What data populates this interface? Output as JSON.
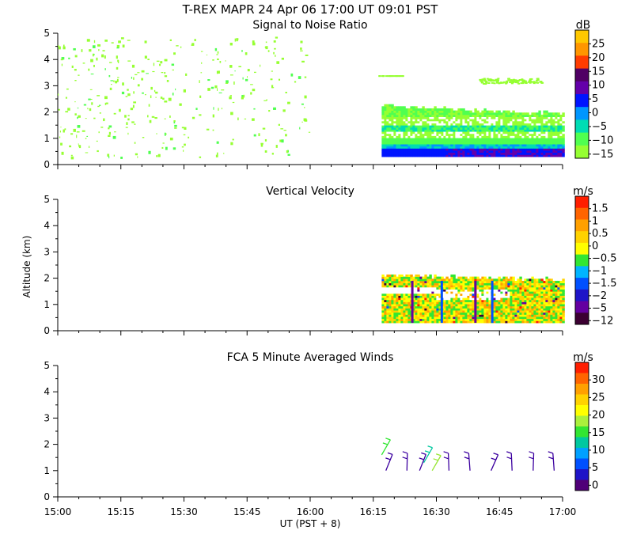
{
  "header": {
    "title": "T-REX  MAPR 24 Apr 06  17:00 UT  09:01  PST"
  },
  "axes": {
    "xlabel": "UT  (PST + 8)",
    "ylabel": "Altitude (km)",
    "x_ticks": [
      "15:00",
      "15:15",
      "15:30",
      "15:45",
      "16:00",
      "16:15",
      "16:30",
      "16:45",
      "17:00"
    ],
    "y_ticks": [
      "0",
      "1",
      "2",
      "3",
      "4",
      "5"
    ]
  },
  "chart_data": [
    {
      "type": "heatmap",
      "title": "Signal to Noise Ratio",
      "xlim": [
        "15:00",
        "17:00"
      ],
      "ylim": [
        0,
        5
      ],
      "colorbar": {
        "unit": "dB",
        "ticks": [
          "25",
          "20",
          "15",
          "10",
          "5",
          "0",
          "−5",
          "−10",
          "−15"
        ],
        "colors": [
          "#ffc800",
          "#ff9600",
          "#ff3c00",
          "#500064",
          "#6400aa",
          "#0014ff",
          "#0096ff",
          "#00dcb4",
          "#50ff50",
          "#96ff32"
        ]
      },
      "summary": {
        "sparse_region": {
          "x": [
            "15:00",
            "16:00"
          ],
          "y": [
            0.3,
            4.9
          ],
          "value_db": -15
        },
        "dense_region": {
          "x": [
            "16:17",
            "17:00"
          ],
          "y": [
            0.3,
            2.2
          ]
        },
        "upper_band": {
          "x": [
            "16:40",
            "16:55"
          ],
          "y": [
            3.1,
            3.3
          ],
          "value_db": -15
        }
      }
    },
    {
      "type": "heatmap",
      "title": "Vertical Velocity",
      "xlim": [
        "15:00",
        "17:00"
      ],
      "ylim": [
        0,
        5
      ],
      "colorbar": {
        "unit": "m/s",
        "ticks": [
          "1.5",
          "1",
          "0.5",
          "0",
          "−0.5",
          "−1",
          "−1.5",
          "−2",
          "−5",
          "−12"
        ],
        "colors": [
          "#ff1e00",
          "#ff6400",
          "#ffa000",
          "#ffd200",
          "#ffff00",
          "#32e632",
          "#00b4ff",
          "#0050ff",
          "#1e14c8",
          "#6400a0",
          "#3c0032"
        ]
      },
      "summary": {
        "dense_region": {
          "x": [
            "16:17",
            "17:00"
          ],
          "y": [
            0.3,
            2.2
          ]
        }
      }
    },
    {
      "type": "scatter",
      "title": "FCA 5 Minute Averaged Winds",
      "xlim": [
        "15:00",
        "17:00"
      ],
      "ylim": [
        0,
        5
      ],
      "colorbar": {
        "unit": "m/s",
        "ticks": [
          "30",
          "25",
          "20",
          "15",
          "10",
          "5",
          "0"
        ],
        "colors": [
          "#ff1e00",
          "#ff6400",
          "#ffa000",
          "#ffd200",
          "#ffff00",
          "#aaf03c",
          "#32e632",
          "#00c8a0",
          "#00a0ff",
          "#0050ff",
          "#1e14c8",
          "#500078"
        ]
      },
      "barbs": [
        {
          "time": "16:17",
          "alt": 1.6,
          "color": "#32e632"
        },
        {
          "time": "16:18",
          "alt": 1.0,
          "color": "#3c00a0"
        },
        {
          "time": "16:23",
          "alt": 1.0,
          "color": "#3c00a0"
        },
        {
          "time": "16:26",
          "alt": 1.0,
          "color": "#3c00a0"
        },
        {
          "time": "16:27",
          "alt": 1.3,
          "color": "#00c8a0"
        },
        {
          "time": "16:29",
          "alt": 1.0,
          "color": "#96e632"
        },
        {
          "time": "16:33",
          "alt": 1.0,
          "color": "#3c00a0"
        },
        {
          "time": "16:38",
          "alt": 1.0,
          "color": "#3c00a0"
        },
        {
          "time": "16:43",
          "alt": 1.0,
          "color": "#3c00a0"
        },
        {
          "time": "16:48",
          "alt": 1.0,
          "color": "#3c00a0"
        },
        {
          "time": "16:53",
          "alt": 1.0,
          "color": "#3c00a0"
        },
        {
          "time": "16:58",
          "alt": 1.0,
          "color": "#3c00a0"
        }
      ]
    }
  ]
}
